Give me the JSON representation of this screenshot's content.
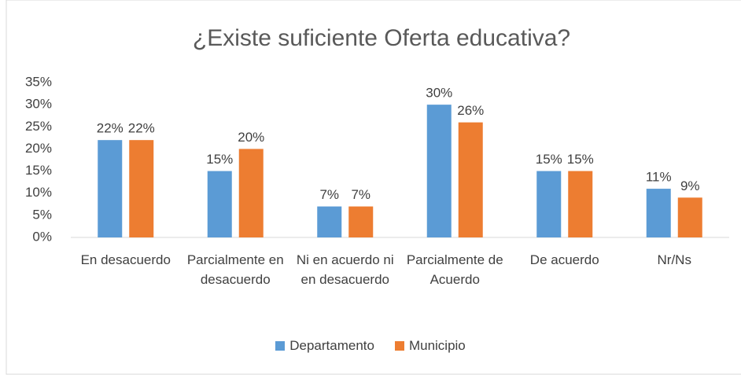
{
  "chart_data": {
    "type": "bar",
    "title": "¿Existe suficiente Oferta educativa?",
    "categories": [
      "En desacuerdo",
      "Parcialmente en desacuerdo",
      "Ni en acuerdo ni en desacuerdo",
      "Parcialmente de Acuerdo",
      "De acuerdo",
      "Nr/Ns"
    ],
    "series": [
      {
        "name": "Departamento",
        "color": "#5b9bd5",
        "values": [
          22,
          15,
          7,
          30,
          15,
          11
        ],
        "value_labels": [
          "22%",
          "15%",
          "7%",
          "30%",
          "15%",
          "11%"
        ]
      },
      {
        "name": "Municipio",
        "color": "#ed7d31",
        "values": [
          22,
          20,
          7,
          26,
          15,
          9
        ],
        "value_labels": [
          "22%",
          "20%",
          "7%",
          "26%",
          "15%",
          "9%"
        ]
      }
    ],
    "ylim": [
      0,
      35
    ],
    "yticks": [
      {
        "value": 0,
        "label": "0%"
      },
      {
        "value": 5,
        "label": "5%"
      },
      {
        "value": 10,
        "label": "10%"
      },
      {
        "value": 15,
        "label": "15%"
      },
      {
        "value": 20,
        "label": "20%"
      },
      {
        "value": 25,
        "label": "25%"
      },
      {
        "value": 30,
        "label": "30%"
      },
      {
        "value": 35,
        "label": "35%"
      }
    ],
    "grid": false,
    "legend": "bottom"
  }
}
